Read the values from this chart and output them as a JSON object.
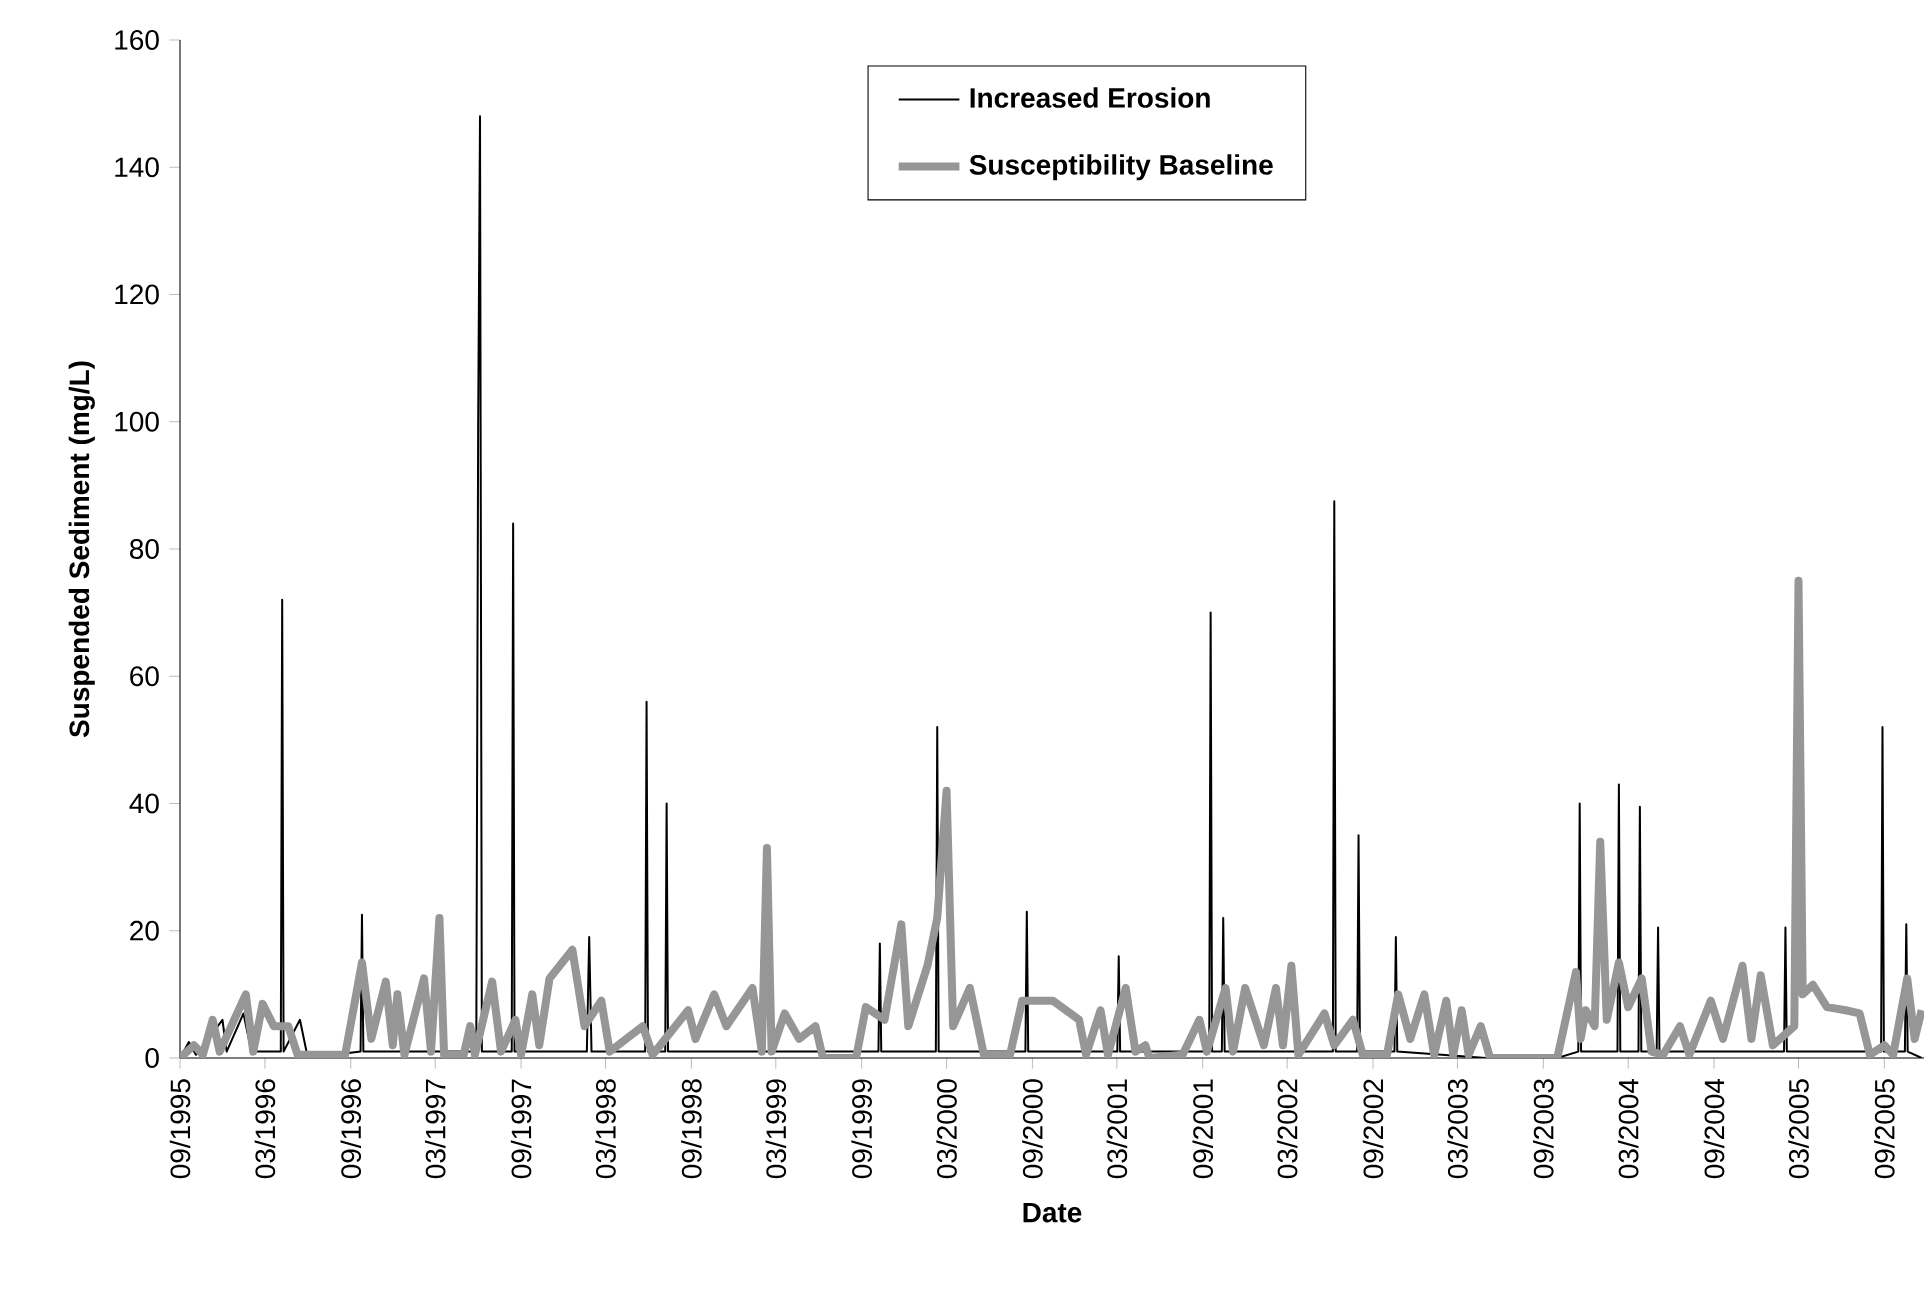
{
  "chart_data": {
    "type": "line",
    "xlabel": "Date",
    "ylabel": "Suspended Sediment (mg/L)",
    "xlim": [
      "1995-09-01",
      "2005-11-25"
    ],
    "xticks": [
      {
        "value": "1995-09-01",
        "label": "09/1995"
      },
      {
        "value": "1996-03-01",
        "label": "03/1996"
      },
      {
        "value": "1996-09-01",
        "label": "09/1996"
      },
      {
        "value": "1997-03-01",
        "label": "03/1997"
      },
      {
        "value": "1997-09-01",
        "label": "09/1997"
      },
      {
        "value": "1998-03-01",
        "label": "03/1998"
      },
      {
        "value": "1998-09-01",
        "label": "09/1998"
      },
      {
        "value": "1999-03-01",
        "label": "03/1999"
      },
      {
        "value": "1999-09-01",
        "label": "09/1999"
      },
      {
        "value": "2000-03-01",
        "label": "03/2000"
      },
      {
        "value": "2000-09-01",
        "label": "09/2000"
      },
      {
        "value": "2001-03-01",
        "label": "03/2001"
      },
      {
        "value": "2001-09-01",
        "label": "09/2001"
      },
      {
        "value": "2002-03-01",
        "label": "03/2002"
      },
      {
        "value": "2002-09-01",
        "label": "09/2002"
      },
      {
        "value": "2003-03-01",
        "label": "03/2003"
      },
      {
        "value": "2003-09-01",
        "label": "09/2003"
      },
      {
        "value": "2004-03-01",
        "label": "03/2004"
      },
      {
        "value": "2004-09-01",
        "label": "09/2004"
      },
      {
        "value": "2005-03-01",
        "label": "03/2005"
      },
      {
        "value": "2005-09-01",
        "label": "09/2005"
      }
    ],
    "ylim": [
      0,
      160
    ],
    "yticks": [
      0,
      20,
      40,
      60,
      80,
      100,
      120,
      140,
      160
    ],
    "grid": false,
    "legend": "top",
    "marker": "none",
    "line_style": "solid",
    "series": [
      {
        "name": "Increased Erosion",
        "color": "#000000",
        "x": [
          "1995-09-01",
          "1995-09-20",
          "1995-10-05",
          "1995-12-01",
          "1995-12-10",
          "1996-01-15",
          "1996-02-01",
          "1996-04-04",
          "1996-04-07",
          "1996-04-10",
          "1996-05-15",
          "1996-06-01",
          "1996-09-22",
          "1996-09-25",
          "1996-09-28",
          "1997-05-28",
          "1997-06-01",
          "1997-06-05",
          "1997-06-09",
          "1997-08-12",
          "1997-08-15",
          "1997-08-18",
          "1998-01-20",
          "1998-01-25",
          "1998-01-30",
          "1998-05-25",
          "1998-05-28",
          "1998-05-31",
          "1998-07-07",
          "1998-07-10",
          "1998-07-13",
          "1999-10-07",
          "1999-10-10",
          "1999-10-13",
          "2000-02-07",
          "2000-02-10",
          "2000-02-13",
          "2000-08-17",
          "2000-08-20",
          "2000-08-23",
          "2001-03-02",
          "2001-03-05",
          "2001-03-08",
          "2001-09-15",
          "2001-09-18",
          "2001-09-21",
          "2001-10-12",
          "2001-10-15",
          "2001-10-18",
          "2002-06-07",
          "2002-06-10",
          "2002-06-13",
          "2002-07-29",
          "2002-08-01",
          "2002-08-04",
          "2002-10-17",
          "2002-10-20",
          "2002-10-23",
          "2003-05-01",
          "2003-10-01",
          "2003-11-15",
          "2003-11-18",
          "2003-11-21",
          "2004-02-07",
          "2004-02-10",
          "2004-02-13",
          "2004-03-23",
          "2004-03-26",
          "2004-03-29",
          "2004-05-01",
          "2004-05-04",
          "2004-05-07",
          "2005-01-29",
          "2005-02-01",
          "2005-02-04",
          "2005-08-25",
          "2005-08-28",
          "2005-08-31",
          "2005-10-15",
          "2005-10-18",
          "2005-10-21",
          "2005-11-20"
        ],
        "values": [
          0,
          2.5,
          0.5,
          6,
          1,
          7,
          1,
          1,
          72,
          1,
          6,
          0,
          1,
          22.5,
          1,
          1,
          99,
          148,
          1,
          1,
          84,
          1,
          1,
          19,
          1,
          1,
          56,
          1,
          1,
          40,
          1,
          1,
          18,
          1,
          1,
          52,
          1,
          1,
          23,
          1,
          1,
          16,
          1,
          1,
          70,
          1,
          1,
          22,
          1,
          1,
          87.5,
          1,
          1,
          35,
          1,
          1,
          19,
          1,
          0,
          0,
          1,
          40,
          1,
          1,
          43,
          1,
          1,
          39.5,
          1,
          1,
          20.5,
          1,
          1,
          20.5,
          1,
          1,
          52,
          1,
          1,
          21,
          1,
          0
        ]
      },
      {
        "name": "Susceptibility Baseline",
        "color": "#969696",
        "x": [
          "1995-09-01",
          "1995-10-01",
          "1995-10-20",
          "1995-11-10",
          "1995-11-25",
          "1996-01-20",
          "1996-02-05",
          "1996-02-25",
          "1996-03-20",
          "1996-04-20",
          "1996-05-10",
          "1996-08-20",
          "1996-09-25",
          "1996-10-15",
          "1996-11-15",
          "1996-11-30",
          "1996-12-10",
          "1996-12-25",
          "1997-02-05",
          "1997-02-20",
          "1997-03-10",
          "1997-03-20",
          "1997-05-01",
          "1997-05-15",
          "1997-05-25",
          "1997-07-01",
          "1997-07-20",
          "1997-08-20",
          "1997-09-01",
          "1997-09-25",
          "1997-10-10",
          "1997-11-01",
          "1997-12-20",
          "1998-01-15",
          "1998-02-20",
          "1998-03-10",
          "1998-05-20",
          "1998-06-10",
          "1998-08-25",
          "1998-09-10",
          "1998-10-20",
          "1998-11-15",
          "1999-01-10",
          "1999-01-30",
          "1999-02-10",
          "1999-02-20",
          "1999-03-20",
          "1999-04-20",
          "1999-05-25",
          "1999-06-10",
          "1999-08-20",
          "1999-09-10",
          "1999-10-20",
          "1999-11-25",
          "1999-12-10",
          "2000-01-20",
          "2000-02-10",
          "2000-03-01",
          "2000-03-15",
          "2000-04-20",
          "2000-05-20",
          "2000-07-15",
          "2000-08-10",
          "2000-10-15",
          "2000-12-10",
          "2000-12-25",
          "2001-01-25",
          "2001-02-10",
          "2001-03-20",
          "2001-04-10",
          "2001-05-01",
          "2001-05-10",
          "2001-07-20",
          "2001-08-25",
          "2001-09-10",
          "2001-10-20",
          "2001-11-05",
          "2001-12-01",
          "2002-01-10",
          "2002-02-05",
          "2002-02-20",
          "2002-03-10",
          "2002-03-25",
          "2002-05-20",
          "2002-06-10",
          "2002-07-20",
          "2002-08-10",
          "2002-10-01",
          "2002-10-25",
          "2002-11-20",
          "2002-12-20",
          "2003-01-10",
          "2003-02-05",
          "2003-02-20",
          "2003-03-10",
          "2003-03-25",
          "2003-04-20",
          "2003-05-10",
          "2003-10-01",
          "2003-11-10",
          "2003-11-20",
          "2003-12-01",
          "2003-12-20",
          "2004-01-01",
          "2004-01-15",
          "2004-02-10",
          "2004-03-01",
          "2004-03-30",
          "2004-04-20",
          "2004-05-15",
          "2004-06-20",
          "2004-07-10",
          "2004-08-25",
          "2004-09-20",
          "2004-11-01",
          "2004-11-20",
          "2004-12-10",
          "2005-01-05",
          "2005-02-20",
          "2005-03-01",
          "2005-03-10",
          "2005-04-01",
          "2005-05-01",
          "2005-06-10",
          "2005-07-10",
          "2005-08-01",
          "2005-09-01",
          "2005-09-20",
          "2005-10-20",
          "2005-11-05",
          "2005-11-20"
        ],
        "values": [
          0,
          2,
          0.5,
          6,
          1,
          10,
          1,
          8.5,
          5,
          5,
          0.5,
          0.5,
          15,
          3,
          12,
          2,
          10,
          0.5,
          12.5,
          1,
          22,
          0.5,
          0.5,
          5,
          0.5,
          12,
          1,
          6,
          0.5,
          10,
          2,
          12.5,
          17,
          5,
          9,
          1,
          5,
          0.5,
          7.5,
          3,
          10,
          5,
          11,
          1,
          33,
          1,
          7,
          3,
          5,
          0,
          0,
          8,
          6,
          21,
          5,
          14.5,
          22,
          42,
          5,
          11,
          0.5,
          0.5,
          9,
          9,
          6,
          0.5,
          7.5,
          0.5,
          11,
          1,
          2,
          0,
          0.5,
          6,
          1,
          11,
          1,
          11,
          2,
          11,
          2,
          14.5,
          0.5,
          7,
          2,
          6,
          0.5,
          0.5,
          10,
          3,
          10,
          0.5,
          9,
          0.5,
          7.5,
          0.5,
          5,
          0,
          0,
          13.5,
          3,
          7.5,
          5,
          34,
          6,
          15,
          8,
          12.5,
          1,
          0.5,
          5,
          0.5,
          9,
          3,
          14.5,
          3,
          13,
          2,
          5,
          75,
          10,
          11.5,
          8,
          7.5,
          7,
          0.5,
          2,
          0.5,
          12.5,
          3,
          7.5
        ]
      }
    ]
  }
}
